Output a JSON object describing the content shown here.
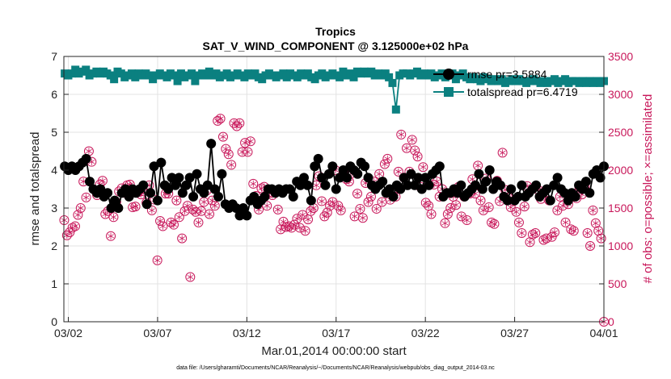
{
  "chart_data": {
    "type": "line",
    "title": "Tropics",
    "subtitle": "SAT_V_WIND_COMPONENT @ 3.125000e+02 hPa",
    "xlabel": "Mar.01,2014 00:00:00 start",
    "ylabel": "rmse and totalspread",
    "ylabel_right": "# of obs: o=possible; ×=assimilated",
    "x_ticks": [
      {
        "value": 1.5,
        "label": "03/02"
      },
      {
        "value": 6.5,
        "label": "03/07"
      },
      {
        "value": 11.5,
        "label": "03/12"
      },
      {
        "value": 16.5,
        "label": "03/17"
      },
      {
        "value": 21.5,
        "label": "03/22"
      },
      {
        "value": 26.5,
        "label": "03/27"
      },
      {
        "value": 31.5,
        "label": "04/01"
      }
    ],
    "xlim": [
      1.25,
      31.5
    ],
    "ylim": [
      0,
      7
    ],
    "y_ticks": [
      0,
      1,
      2,
      3,
      4,
      5,
      6,
      7
    ],
    "y2lim": [
      0,
      3500
    ],
    "y2_ticks": [
      0,
      500,
      1000,
      1500,
      2000,
      2500,
      3000,
      3500
    ],
    "grid": true,
    "legend_position": "top-right",
    "colors": {
      "rmse": "#000000",
      "spread": "#0b8080",
      "obs": "#c8175a",
      "grid": "#e3e3e3"
    },
    "footer": "data file: /Users/gharamti/Documents/NCAR/Reanalysis/~/Documents/NCAR/Reanalysis/webpub/obs_diag_output_2014-03.nc",
    "series": [
      {
        "name": "rmse pr=3.5884",
        "axis": "left",
        "values": [
          4.1,
          4.0,
          4.1,
          4.0,
          4.1,
          4.2,
          4.3,
          3.7,
          3.5,
          3.4,
          3.5,
          3.3,
          3.4,
          3.0,
          3.2,
          3.0,
          3.4,
          3.5,
          3.3,
          3.5,
          3.4,
          3.5,
          3.6,
          3.1,
          3.4,
          4.1,
          3.2,
          4.2,
          3.6,
          3.5,
          3.8,
          3.6,
          3.8,
          3.4,
          3.6,
          3.8,
          3.3,
          3.9,
          3.5,
          3.4,
          3.6,
          4.7,
          3.5,
          3.3,
          3.9,
          3.1,
          3.0,
          3.1,
          3.0,
          2.8,
          3.0,
          2.8,
          3.2,
          3.3,
          3.1,
          3.2,
          3.3,
          3.5,
          3.5,
          3.4,
          3.5,
          3.4,
          3.5,
          3.5,
          3.3,
          3.7,
          3.6,
          3.8,
          3.6,
          3.2,
          4.1,
          4.3,
          3.8,
          3.6,
          3.9,
          4.1,
          3.5,
          3.8,
          4.0,
          3.8,
          4.1,
          4.0,
          3.9,
          4.2,
          4.1,
          3.8,
          3.6,
          3.5,
          3.6,
          3.7,
          3.4,
          3.5,
          3.3,
          3.6,
          3.5,
          3.8,
          3.6,
          3.9,
          3.6,
          3.8,
          3.5,
          3.8,
          3.6,
          3.9,
          4.0,
          4.1,
          3.3,
          3.4,
          3.4,
          3.5,
          3.4,
          3.6,
          3.3,
          3.4,
          3.5,
          3.6,
          3.9,
          3.5,
          3.7,
          4.0,
          3.5,
          3.7,
          3.6,
          3.3,
          3.2,
          3.5,
          3.2,
          3.3,
          3.6,
          3.3,
          3.4,
          3.5,
          3.6,
          3.3,
          3.4,
          3.5,
          3.2,
          3.6,
          3.8,
          3.5,
          3.4,
          3.2,
          3.4,
          3.3,
          3.6,
          3.5,
          3.7,
          3.4,
          3.9,
          4.0,
          3.8,
          4.1
        ]
      },
      {
        "name": "totalspread pr=6.4719",
        "axis": "left",
        "values": [
          6.55,
          6.5,
          6.55,
          6.65,
          6.55,
          6.6,
          6.65,
          6.5,
          6.55,
          6.6,
          6.55,
          6.6,
          6.55,
          6.5,
          6.4,
          6.6,
          6.55,
          6.45,
          6.5,
          6.55,
          6.45,
          6.55,
          6.5,
          6.55,
          6.5,
          6.4,
          6.5,
          6.55,
          6.5,
          6.45,
          6.55,
          6.5,
          6.35,
          6.55,
          6.45,
          6.5,
          6.55,
          6.35,
          6.5,
          6.55,
          6.5,
          6.6,
          6.5,
          6.55,
          6.45,
          6.5,
          6.55,
          6.45,
          6.5,
          6.55,
          6.5,
          6.45,
          6.55,
          6.5,
          6.55,
          6.45,
          6.4,
          6.5,
          6.55,
          6.5,
          6.45,
          6.5,
          6.55,
          6.45,
          6.55,
          6.5,
          6.45,
          6.55,
          6.5,
          6.55,
          6.45,
          6.4,
          6.5,
          6.55,
          6.45,
          6.5,
          6.55,
          6.5,
          6.45,
          6.6,
          6.5,
          6.55,
          6.45,
          6.6,
          6.55,
          6.6,
          6.55,
          6.6,
          6.5,
          6.55,
          6.5,
          6.55,
          6.45,
          6.3,
          5.6,
          6.5,
          6.55,
          6.55,
          6.5,
          6.55,
          6.6,
          6.5,
          6.55,
          6.5,
          6.55,
          6.45,
          6.5,
          6.55,
          6.45,
          6.5,
          6.55,
          6.4,
          6.5,
          6.55,
          6.45,
          6.4,
          6.45,
          6.4,
          6.35,
          6.45,
          6.4,
          6.35,
          6.4,
          6.35,
          6.4,
          6.3,
          6.35,
          6.4,
          6.35,
          6.4,
          6.35,
          6.3,
          6.35,
          6.4,
          6.35,
          6.3,
          6.35,
          6.3,
          6.35,
          6.4,
          6.3,
          6.35,
          6.4,
          6.3,
          6.35,
          6.35,
          6.3,
          6.35,
          6.3,
          6.35,
          6.3,
          6.35,
          6.3,
          6.35
        ]
      },
      {
        "name": "# of obs",
        "axis": "right",
        "values": [
          1340,
          1140,
          1180,
          1240,
          1260,
          1410,
          1500,
          1850,
          1640,
          2250,
          2110,
          1740,
          1670,
          1810,
          1860,
          1420,
          1460,
          1130,
          1380,
          1580,
          1720,
          1760,
          1700,
          1800,
          1810,
          1510,
          1520,
          1710,
          1680,
          1720,
          1570,
          1800,
          1470,
          1610,
          810,
          1330,
          1260,
          1690,
          1690,
          1310,
          1280,
          1600,
          1380,
          1100,
          1460,
          1530,
          590,
          1480,
          1450,
          1310,
          1460,
          1580,
          1730,
          1420,
          1600,
          1530,
          2650,
          2680,
          2440,
          2280,
          2210,
          2070,
          2620,
          2580,
          2620,
          2240,
          2360,
          2240,
          2380,
          1820,
          1660,
          1480,
          1760,
          1780,
          1530,
          1700,
          1670,
          1720,
          1480,
          1220,
          1320,
          1250,
          1260,
          1240,
          1280,
          1360,
          1240,
          1410,
          1200,
          1350,
          1460,
          1500,
          1800,
          1920,
          1590,
          1390,
          1440,
          1530,
          1580,
          2000,
          1530,
          1470,
          1970,
          1880,
          1850,
          1960,
          1390,
          1690,
          1490,
          1370,
          1830,
          1580,
          1650,
          1850,
          1490,
          1950,
          1580,
          2080,
          2150,
          1610,
          1690,
          1650,
          1980,
          2470,
          1900,
          2290,
          1980,
          2400,
          2260,
          2180,
          1780,
          2040,
          1570,
          1530,
          1420,
          1810,
          1850,
          1650,
          1750,
          1300,
          1420,
          1500,
          1650,
          1540,
          1780,
          1390,
          1650,
          1340,
          1690,
          1880,
          1690,
          2060,
          1600,
          1470,
          1890,
          1510,
          1310,
          1290,
          1860,
          1590,
          2230,
          1740,
          1640,
          1510,
          1590,
          1450,
          1310,
          1170,
          1520,
          1790,
          1050,
          1150,
          1170,
          1740,
          1620,
          1080,
          1100,
          1600,
          1120,
          1180,
          1470,
          1650,
          1530,
          1310,
          1550,
          1220,
          1200,
          1630,
          1780,
          1680,
          1780,
          1170,
          1000,
          1470,
          1300,
          1200,
          1100,
          0
        ]
      }
    ]
  }
}
